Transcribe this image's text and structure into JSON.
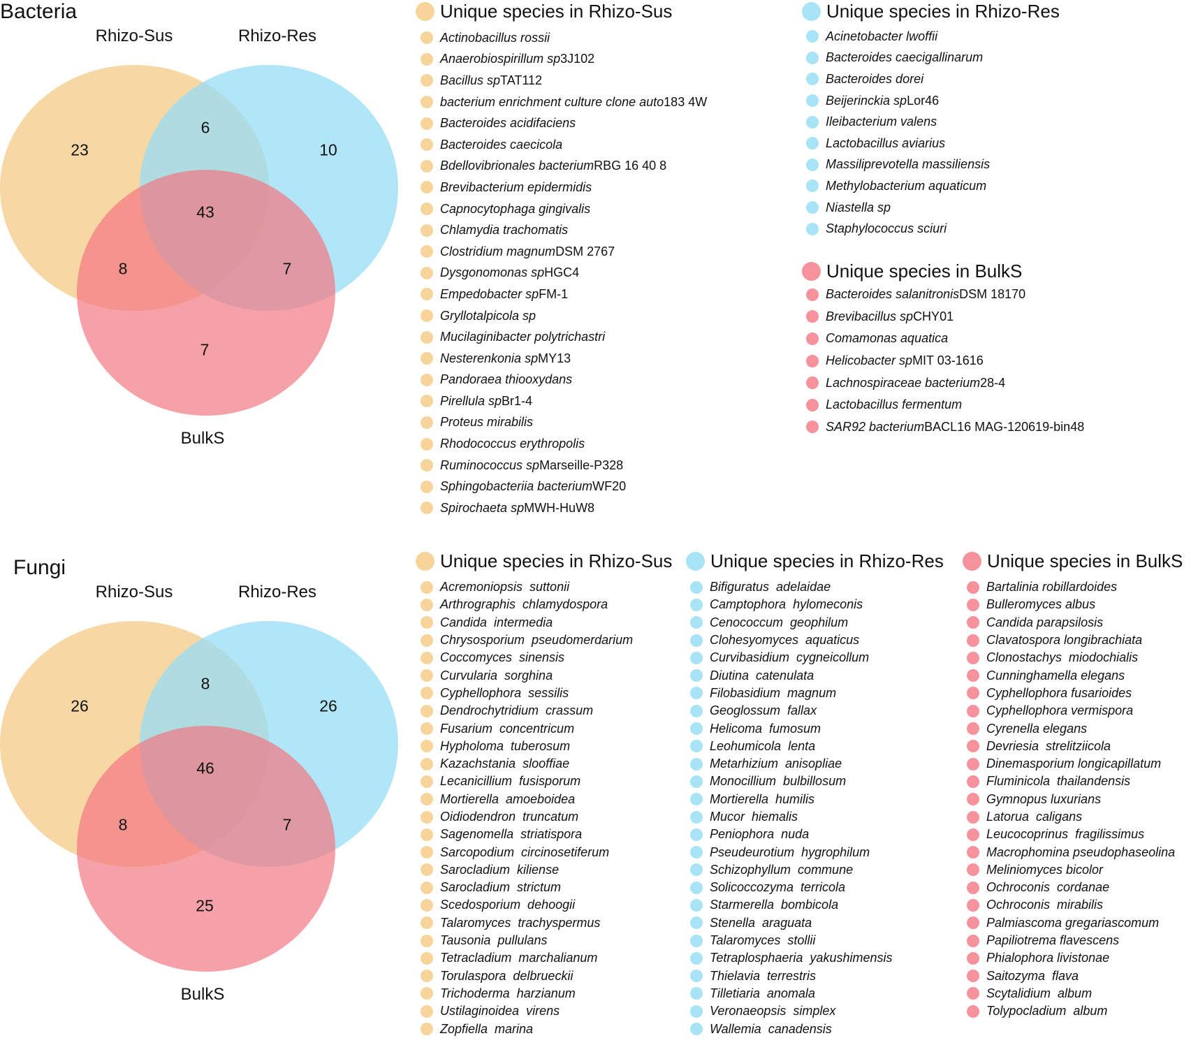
{
  "colors": {
    "sus": "#f7d49a",
    "res": "#a8e4f5",
    "bulk": "#f5929b"
  },
  "bacteria": {
    "title": "Bacteria",
    "venn": {
      "labels": {
        "sus": "Rhizo-Sus",
        "res": "Rhizo-Res",
        "bulk": "BulkS"
      },
      "counts": {
        "sus_only": "23",
        "sus_res": "6",
        "res_only": "10",
        "all": "43",
        "sus_bulk": "8",
        "res_bulk": "7",
        "bulk_only": "7"
      }
    },
    "legend_sus": {
      "title": "Unique species in Rhizo-Sus",
      "items": [
        {
          "name": "Actinobacillus rossii",
          "strain": ""
        },
        {
          "name": "Anaerobiospirillum sp",
          "strain": "3J102"
        },
        {
          "name": "Bacillus sp",
          "strain": "TAT112"
        },
        {
          "name": "bacterium enrichment culture clone auto",
          "strain": "183 4W"
        },
        {
          "name": "Bacteroides acidifaciens",
          "strain": ""
        },
        {
          "name": "Bacteroides caecicola",
          "strain": ""
        },
        {
          "name": "Bdellovibrionales bacterium",
          "strain": "RBG 16 40 8"
        },
        {
          "name": "Brevibacterium epidermidis",
          "strain": ""
        },
        {
          "name": "Capnocytophaga gingivalis",
          "strain": ""
        },
        {
          "name": "Chlamydia trachomatis",
          "strain": ""
        },
        {
          "name": "Clostridium magnum",
          "strain": "DSM 2767"
        },
        {
          "name": "Dysgonomonas sp",
          "strain": "HGC4"
        },
        {
          "name": "Empedobacter sp",
          "strain": "FM-1"
        },
        {
          "name": "Gryllotalpicola sp",
          "strain": ""
        },
        {
          "name": "Mucilaginibacter polytrichastri",
          "strain": ""
        },
        {
          "name": "Nesterenkonia sp",
          "strain": "MY13"
        },
        {
          "name": "Pandoraea thiooxydans",
          "strain": ""
        },
        {
          "name": "Pirellula sp",
          "strain": "Br1-4"
        },
        {
          "name": "Proteus mirabilis",
          "strain": ""
        },
        {
          "name": "Rhodococcus erythropolis",
          "strain": ""
        },
        {
          "name": "Ruminococcus sp",
          "strain": "Marseille-P328"
        },
        {
          "name": "Sphingobacteriia bacterium",
          "strain": "WF20"
        },
        {
          "name": "Spirochaeta sp",
          "strain": "MWH-HuW8"
        }
      ]
    },
    "legend_res": {
      "title": "Unique species in Rhizo-Res",
      "items": [
        {
          "name": "Acinetobacter lwoffii",
          "strain": ""
        },
        {
          "name": "Bacteroides caecigallinarum",
          "strain": ""
        },
        {
          "name": "Bacteroides dorei",
          "strain": ""
        },
        {
          "name": "Beijerinckia sp",
          "strain": "Lor46"
        },
        {
          "name": "Ileibacterium valens",
          "strain": ""
        },
        {
          "name": "Lactobacillus aviarius",
          "strain": ""
        },
        {
          "name": "Massiliprevotella massiliensis",
          "strain": ""
        },
        {
          "name": "Methylobacterium aquaticum",
          "strain": ""
        },
        {
          "name": "Niastella sp",
          "strain": ""
        },
        {
          "name": "Staphylococcus sciuri",
          "strain": ""
        }
      ]
    },
    "legend_bulk": {
      "title": "Unique species in BulkS",
      "items": [
        {
          "name": "Bacteroides salanitronis",
          "strain": "DSM 18170"
        },
        {
          "name": "Brevibacillus sp",
          "strain": "CHY01"
        },
        {
          "name": "Comamonas aquatica",
          "strain": ""
        },
        {
          "name": "Helicobacter sp",
          "strain": "MIT 03-1616"
        },
        {
          "name": "Lachnospiraceae bacterium",
          "strain": "28-4"
        },
        {
          "name": "Lactobacillus fermentum",
          "strain": ""
        },
        {
          "name": "SAR92 bacterium",
          "strain": "BACL16 MAG-120619-bin48"
        }
      ]
    }
  },
  "fungi": {
    "title": "Fungi",
    "venn": {
      "labels": {
        "sus": "Rhizo-Sus",
        "res": "Rhizo-Res",
        "bulk": "BulkS"
      },
      "counts": {
        "sus_only": "26",
        "sus_res": "8",
        "res_only": "26",
        "all": "46",
        "sus_bulk": "8",
        "res_bulk": "7",
        "bulk_only": "25"
      }
    },
    "legend_sus": {
      "title": "Unique species in Rhizo-Sus",
      "items": [
        {
          "name": "Acremoniopsis  suttonii",
          "strain": ""
        },
        {
          "name": "Arthrographis  chlamydospora",
          "strain": ""
        },
        {
          "name": "Candida  intermedia",
          "strain": ""
        },
        {
          "name": "Chrysosporium  pseudomerdarium",
          "strain": ""
        },
        {
          "name": "Coccomyces  sinensis",
          "strain": ""
        },
        {
          "name": "Curvularia  sorghina",
          "strain": ""
        },
        {
          "name": "Cyphellophora  sessilis",
          "strain": ""
        },
        {
          "name": "Dendrochytridium  crassum",
          "strain": ""
        },
        {
          "name": "Fusarium  concentricum",
          "strain": ""
        },
        {
          "name": "Hypholoma  tuberosum",
          "strain": ""
        },
        {
          "name": "Kazachstania  slooffiae",
          "strain": ""
        },
        {
          "name": "Lecanicillium  fusisporum",
          "strain": ""
        },
        {
          "name": "Mortierella  amoeboidea",
          "strain": ""
        },
        {
          "name": "Oidiodendron  truncatum",
          "strain": ""
        },
        {
          "name": "Sagenomella  striatispora",
          "strain": ""
        },
        {
          "name": "Sarcopodium  circinosetiferum",
          "strain": ""
        },
        {
          "name": "Sarocladium  kiliense",
          "strain": ""
        },
        {
          "name": "Sarocladium  strictum",
          "strain": ""
        },
        {
          "name": "Scedosporium  dehoogii",
          "strain": ""
        },
        {
          "name": "Talaromyces  trachyspermus",
          "strain": ""
        },
        {
          "name": "Tausonia  pullulans",
          "strain": ""
        },
        {
          "name": "Tetracladium  marchalianum",
          "strain": ""
        },
        {
          "name": "Torulaspora  delbrueckii",
          "strain": ""
        },
        {
          "name": "Trichoderma  harzianum",
          "strain": ""
        },
        {
          "name": "Ustilaginoidea  virens",
          "strain": ""
        },
        {
          "name": "Zopfiella  marina",
          "strain": ""
        }
      ]
    },
    "legend_res": {
      "title": "Unique species in Rhizo-Res",
      "items": [
        {
          "name": "Bifiguratus  adelaidae",
          "strain": ""
        },
        {
          "name": "Camptophora  hylomeconis",
          "strain": ""
        },
        {
          "name": "Cenococcum  geophilum",
          "strain": ""
        },
        {
          "name": "Clohesyomyces  aquaticus",
          "strain": ""
        },
        {
          "name": "Curvibasidium  cygneicollum",
          "strain": ""
        },
        {
          "name": "Diutina  catenulata",
          "strain": ""
        },
        {
          "name": "Filobasidium  magnum",
          "strain": ""
        },
        {
          "name": "Geoglossum  fallax",
          "strain": ""
        },
        {
          "name": "Helicoma  fumosum",
          "strain": ""
        },
        {
          "name": "Leohumicola  lenta",
          "strain": ""
        },
        {
          "name": "Metarhizium  anisopliae",
          "strain": ""
        },
        {
          "name": "Monocillium  bulbillosum",
          "strain": ""
        },
        {
          "name": "Mortierella  humilis",
          "strain": ""
        },
        {
          "name": "Mucor  hiemalis",
          "strain": ""
        },
        {
          "name": "Peniophora  nuda",
          "strain": ""
        },
        {
          "name": "Pseudeurotium  hygrophilum",
          "strain": ""
        },
        {
          "name": "Schizophyllum  commune",
          "strain": ""
        },
        {
          "name": "Solicoccozyma  terricola",
          "strain": ""
        },
        {
          "name": "Starmerella  bombicola",
          "strain": ""
        },
        {
          "name": "Stenella  araguata",
          "strain": ""
        },
        {
          "name": "Talaromyces  stollii",
          "strain": ""
        },
        {
          "name": "Tetraplosphaeria  yakushimensis",
          "strain": ""
        },
        {
          "name": "Thielavia  terrestris",
          "strain": ""
        },
        {
          "name": "Tilletiaria  anomala",
          "strain": ""
        },
        {
          "name": "Veronaeopsis  simplex",
          "strain": ""
        },
        {
          "name": "Wallemia  canadensis",
          "strain": ""
        }
      ]
    },
    "legend_bulk": {
      "title": "Unique species in BulkS",
      "items": [
        {
          "name": "Bartalinia robillardoides",
          "strain": ""
        },
        {
          "name": "Bulleromyces albus",
          "strain": ""
        },
        {
          "name": "Candida parapsilosis",
          "strain": ""
        },
        {
          "name": "Clavatospora longibrachiata",
          "strain": ""
        },
        {
          "name": "Clonostachys  miodochialis",
          "strain": ""
        },
        {
          "name": "Cunninghamella elegans",
          "strain": ""
        },
        {
          "name": "Cyphellophora fusarioides",
          "strain": ""
        },
        {
          "name": "Cyphellophora vermispora",
          "strain": ""
        },
        {
          "name": "Cyrenella elegans",
          "strain": ""
        },
        {
          "name": "Devriesia  strelitziicola",
          "strain": ""
        },
        {
          "name": "Dinemasporium longicapillatum",
          "strain": ""
        },
        {
          "name": "Fluminicola  thailandensis",
          "strain": ""
        },
        {
          "name": "Gymnopus luxurians",
          "strain": ""
        },
        {
          "name": "Latorua  caligans",
          "strain": ""
        },
        {
          "name": "Leucocoprinus  fragilissimus",
          "strain": ""
        },
        {
          "name": "Macrophomina pseudophaseolina",
          "strain": ""
        },
        {
          "name": "Meliniomyces bicolor",
          "strain": ""
        },
        {
          "name": "Ochroconis  cordanae",
          "strain": ""
        },
        {
          "name": "Ochroconis  mirabilis",
          "strain": ""
        },
        {
          "name": "Palmiascoma gregariascomum",
          "strain": ""
        },
        {
          "name": "Papiliotrema flavescens",
          "strain": ""
        },
        {
          "name": "Phialophora livistonae",
          "strain": ""
        },
        {
          "name": "Saitozyma  flava",
          "strain": ""
        },
        {
          "name": "Scytalidium  album",
          "strain": ""
        },
        {
          "name": "Tolypocladium  album",
          "strain": ""
        }
      ]
    }
  }
}
